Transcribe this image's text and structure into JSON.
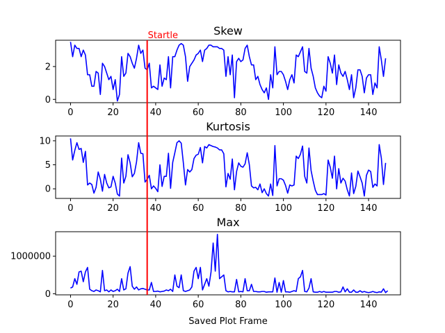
{
  "colors": {
    "line": "#0000ff",
    "marker": "#ff0000",
    "axis": "#000000"
  },
  "xlabel": "Saved Plot Frame",
  "marker": {
    "x": 36,
    "label": "Startle"
  },
  "chart_data": [
    {
      "type": "line",
      "title": "Skew",
      "xlim": [
        -7,
        155
      ],
      "ylim": [
        -0.2,
        3.6
      ],
      "xticks": [
        0,
        20,
        40,
        60,
        80,
        100,
        120,
        140
      ],
      "yticks": [
        0,
        2
      ],
      "grid": false,
      "values": [
        3.5,
        2.6,
        3.3,
        3.1,
        3.1,
        2.6,
        3.0,
        2.7,
        1.5,
        1.5,
        0.8,
        0.8,
        1.7,
        1.6,
        0.3,
        2.2,
        2.0,
        1.6,
        1.2,
        1.4,
        0.6,
        1.2,
        -0.1,
        0.3,
        2.6,
        1.4,
        1.6,
        2.8,
        2.6,
        2.2,
        1.9,
        2.5,
        3.3,
        2.8,
        3.0,
        1.9,
        1.8,
        2.2,
        0.7,
        0.8,
        0.7,
        0.6,
        2.1,
        0.8,
        1.3,
        1.2,
        2.6,
        0.7,
        2.6,
        2.6,
        3.0,
        3.3,
        3.4,
        3.3,
        2.6,
        1.1,
        2.0,
        2.2,
        2.4,
        2.7,
        2.8,
        3.0,
        2.3,
        3.0,
        3.1,
        3.3,
        3.3,
        3.2,
        3.2,
        3.2,
        3.1,
        3.1,
        3.0,
        1.4,
        2.6,
        1.5,
        2.7,
        0.1,
        2.3,
        2.5,
        2.3,
        2.4,
        3.1,
        3.3,
        2.6,
        2.1,
        2.1,
        1.2,
        1.4,
        0.9,
        0.6,
        0.4,
        0.7,
        0.0,
        1.5,
        0.7,
        3.2,
        1.5,
        1.7,
        1.7,
        1.5,
        1.1,
        0.6,
        1.2,
        1.5,
        1.0,
        2.7,
        2.6,
        2.9,
        3.2,
        1.7,
        1.6,
        3.1,
        1.9,
        1.4,
        0.7,
        0.4,
        0.2,
        0.1,
        0.8,
        0.5,
        2.6,
        2.2,
        1.6,
        2.7,
        0.9,
        2.1,
        1.6,
        1.4,
        1.7,
        1.2,
        0.6,
        1.5,
        0.1,
        0.7,
        1.8,
        1.8,
        1.4,
        0.4,
        1.3,
        1.5,
        1.5,
        0.3,
        1.0,
        0.7,
        3.2,
        2.4,
        1.4,
        2.5
      ]
    },
    {
      "type": "line",
      "title": "Kurtosis",
      "xlim": [
        -7,
        155
      ],
      "ylim": [
        -2,
        11
      ],
      "xticks": [
        0,
        20,
        40,
        60,
        80,
        100,
        120,
        140
      ],
      "yticks": [
        0,
        5,
        10
      ],
      "grid": false,
      "values": [
        10.5,
        6.0,
        8.0,
        9.6,
        8.2,
        8.4,
        5.5,
        7.8,
        0.8,
        1.2,
        0.9,
        -0.9,
        0.3,
        3.5,
        2.0,
        -0.5,
        3.0,
        1.2,
        0.2,
        0.4,
        2.6,
        1.2,
        -1.1,
        -1.5,
        6.4,
        1.2,
        2.6,
        7.1,
        5.4,
        2.5,
        3.2,
        5.6,
        9.6,
        7.4,
        7.3,
        1.4,
        2.0,
        2.8,
        0.0,
        0.6,
        0.1,
        -0.6,
        5.0,
        0.5,
        2.6,
        2.6,
        7.4,
        0.1,
        5.5,
        7.5,
        9.6,
        10.0,
        9.5,
        5.4,
        0.8,
        4.0,
        3.5,
        4.0,
        6.3,
        7.0,
        7.2,
        8.6,
        5.4,
        8.8,
        8.5,
        9.2,
        9.0,
        8.8,
        8.7,
        8.5,
        8.1,
        8.1,
        7.3,
        0.4,
        3.2,
        2.0,
        6.2,
        -0.2,
        3.6,
        5.4,
        4.7,
        4.5,
        5.2,
        7.5,
        5.0,
        0.6,
        0.2,
        0.3,
        -0.2,
        1.0,
        -0.8,
        0.0,
        -1.0,
        -1.5,
        1.0,
        -1.4,
        9.0,
        0.6,
        2.1,
        2.1,
        1.8,
        0.7,
        -0.9,
        0.8,
        0.6,
        0.8,
        6.8,
        6.3,
        7.2,
        8.9,
        2.6,
        1.2,
        8.5,
        3.8,
        1.6,
        -0.3,
        -1.2,
        -1.2,
        -1.2,
        -1.0,
        -1.3,
        6.0,
        4.5,
        2.2,
        6.8,
        0.0,
        4.2,
        1.2,
        2.2,
        1.6,
        -0.2,
        -1.5,
        3.3,
        -1.0,
        0.5,
        3.7,
        2.5,
        1.2,
        -1.5,
        2.8,
        3.9,
        3.6,
        0.3,
        1.0,
        0.6,
        9.2,
        6.4,
        0.9,
        5.4
      ]
    },
    {
      "type": "line",
      "title": "Max",
      "xlim": [
        -7,
        155
      ],
      "ylim": [
        -30000,
        1650000
      ],
      "xticks": [
        0,
        20,
        40,
        60,
        80,
        100,
        120,
        140
      ],
      "yticks": [
        0,
        1000000
      ],
      "grid": false,
      "values": [
        150000,
        180000,
        400000,
        250000,
        580000,
        600000,
        320000,
        580000,
        700000,
        120000,
        80000,
        60000,
        100000,
        80000,
        50000,
        620000,
        80000,
        100000,
        50000,
        100000,
        60000,
        80000,
        120000,
        60000,
        400000,
        100000,
        130000,
        550000,
        720000,
        200000,
        120000,
        180000,
        100000,
        130000,
        140000,
        120000,
        100000,
        100000,
        300000,
        60000,
        60000,
        70000,
        50000,
        60000,
        70000,
        100000,
        80000,
        120000,
        60000,
        500000,
        200000,
        160000,
        500000,
        80000,
        60000,
        80000,
        100000,
        180000,
        600000,
        700000,
        400000,
        700000,
        100000,
        250000,
        400000,
        200000,
        580000,
        1350000,
        600000,
        1580000,
        400000,
        450000,
        500000,
        80000,
        50000,
        60000,
        50000,
        50000,
        380000,
        50000,
        60000,
        50000,
        400000,
        80000,
        80000,
        250000,
        60000,
        60000,
        50000,
        50000,
        60000,
        60000,
        40000,
        50000,
        50000,
        50000,
        420000,
        40000,
        300000,
        40000,
        350000,
        50000,
        50000,
        40000,
        60000,
        80000,
        60000,
        400000,
        450000,
        620000,
        60000,
        50000,
        150000,
        400000,
        50000,
        40000,
        40000,
        60000,
        40000,
        60000,
        40000,
        40000,
        40000,
        40000,
        60000,
        60000,
        40000,
        50000,
        180000,
        50000,
        130000,
        40000,
        40000,
        100000,
        40000,
        40000,
        80000,
        40000,
        60000,
        40000,
        30000,
        40000,
        60000,
        40000,
        30000,
        50000,
        40000,
        130000,
        30000,
        80000
      ]
    }
  ]
}
